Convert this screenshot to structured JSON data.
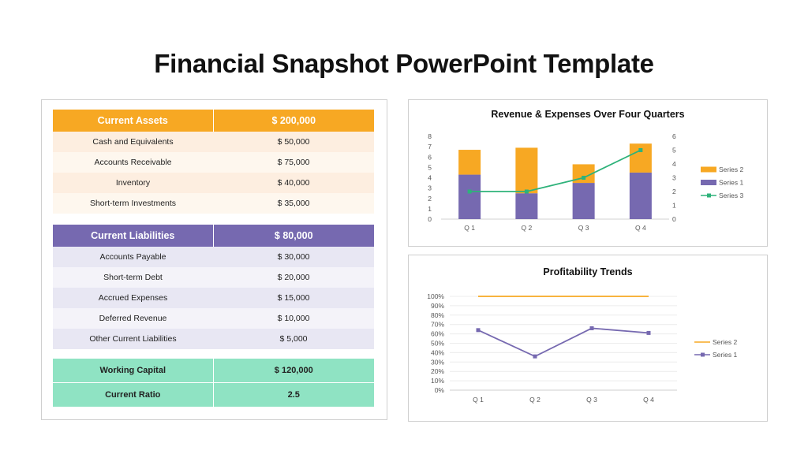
{
  "title": "Financial Snapshot PowerPoint Template",
  "assets": {
    "header_label": "Current Assets",
    "header_value": "$ 200,000",
    "rows": [
      {
        "label": "Cash and Equivalents",
        "value": "$ 50,000"
      },
      {
        "label": "Accounts Receivable",
        "value": "$ 75,000"
      },
      {
        "label": "Inventory",
        "value": "$ 40,000"
      },
      {
        "label": "Short-term Investments",
        "value": "$ 35,000"
      }
    ]
  },
  "liabilities": {
    "header_label": "Current Liabilities",
    "header_value": "$ 80,000",
    "rows": [
      {
        "label": "Accounts Payable",
        "value": "$ 30,000"
      },
      {
        "label": "Short-term Debt",
        "value": "$ 20,000"
      },
      {
        "label": "Accrued Expenses",
        "value": "$ 15,000"
      },
      {
        "label": "Deferred Revenue",
        "value": "$ 10,000"
      },
      {
        "label": "Other Current Liabilities",
        "value": "$ 5,000"
      }
    ]
  },
  "summary": {
    "working_capital_label": "Working Capital",
    "working_capital_value": "$ 120,000",
    "current_ratio_label": "Current Ratio",
    "current_ratio_value": "2.5"
  },
  "colors": {
    "orange": "#f7a823",
    "purple": "#7669b0",
    "green": "#2eb27a",
    "mint": "#8fe3c3"
  },
  "chart_data": [
    {
      "type": "bar",
      "stacked": true,
      "title": "Revenue & Expenses Over Four Quarters",
      "categories": [
        "Q 1",
        "Q 2",
        "Q 3",
        "Q 4"
      ],
      "series": [
        {
          "name": "Series 1",
          "type": "bar",
          "axis": "left",
          "color": "#7669b0",
          "values": [
            4.3,
            2.5,
            3.5,
            4.5
          ]
        },
        {
          "name": "Series 2",
          "type": "bar",
          "axis": "left",
          "color": "#f7a823",
          "values": [
            2.4,
            4.4,
            1.8,
            2.8
          ]
        },
        {
          "name": "Series 3",
          "type": "line",
          "axis": "right",
          "color": "#2eb27a",
          "values": [
            2,
            2,
            3,
            5
          ]
        }
      ],
      "ylim": [
        0,
        8
      ],
      "y_ticks": [
        0,
        1,
        2,
        3,
        4,
        5,
        6,
        7,
        8
      ],
      "y2lim": [
        0,
        6
      ],
      "y2_ticks": [
        0,
        1,
        2,
        3,
        4,
        5,
        6
      ],
      "legend": "right",
      "legend_order": [
        "Series 2",
        "Series 1",
        "Series 3"
      ],
      "grid": false
    },
    {
      "type": "line",
      "title": "Profitability Trends",
      "categories": [
        "Q 1",
        "Q 2",
        "Q 3",
        "Q 4"
      ],
      "series": [
        {
          "name": "Series 1",
          "color": "#7669b0",
          "markers": true,
          "values": [
            64,
            36,
            66,
            61
          ]
        },
        {
          "name": "Series 2",
          "color": "#f7a823",
          "markers": false,
          "values": [
            100,
            100,
            100,
            100
          ]
        }
      ],
      "ylim": [
        0,
        100
      ],
      "y_ticks": [
        "0%",
        "10%",
        "20%",
        "30%",
        "40%",
        "50%",
        "60%",
        "70%",
        "80%",
        "90%",
        "100%"
      ],
      "legend": "right",
      "legend_order": [
        "Series 2",
        "Series 1"
      ],
      "grid": true
    }
  ]
}
